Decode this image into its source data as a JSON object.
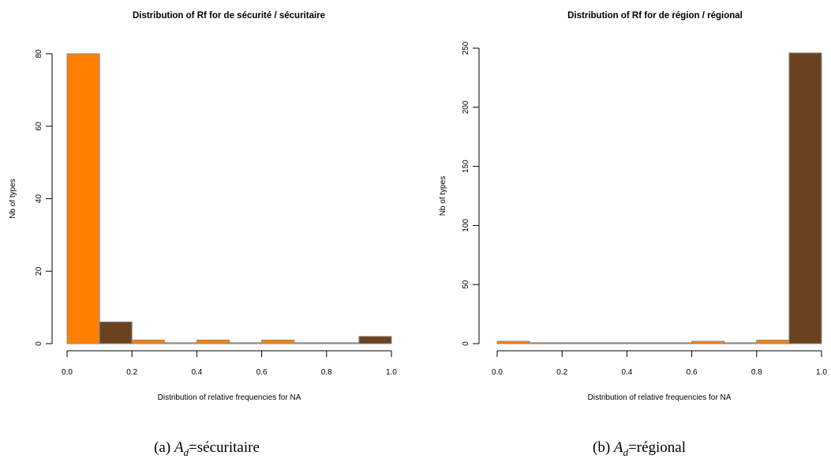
{
  "colors": {
    "orange": "#FF8000",
    "brown": "#6B4220",
    "axis": "#000000",
    "bar_border": "#8a8a8a"
  },
  "chart_data": [
    {
      "type": "bar",
      "title": "Distribution of Rf for de sécurité / sécuritaire",
      "xlabel": "Distribution of relative frequencies for NA",
      "ylabel": "Nb of types",
      "xlim": [
        0,
        1
      ],
      "ylim": [
        0,
        80
      ],
      "xticks": [
        "0.0",
        "0.2",
        "0.4",
        "0.6",
        "0.8",
        "1.0"
      ],
      "yticks": [
        "0",
        "20",
        "40",
        "60",
        "80"
      ],
      "bins": [
        {
          "from": 0.0,
          "to": 0.1,
          "value": 80,
          "color": "orange"
        },
        {
          "from": 0.1,
          "to": 0.2,
          "value": 6,
          "color": "brown"
        },
        {
          "from": 0.2,
          "to": 0.3,
          "value": 1,
          "color": "orange"
        },
        {
          "from": 0.3,
          "to": 0.4,
          "value": 0,
          "color": "orange"
        },
        {
          "from": 0.4,
          "to": 0.5,
          "value": 1,
          "color": "orange"
        },
        {
          "from": 0.5,
          "to": 0.6,
          "value": 0,
          "color": "orange"
        },
        {
          "from": 0.6,
          "to": 0.7,
          "value": 1,
          "color": "orange"
        },
        {
          "from": 0.7,
          "to": 0.8,
          "value": 0,
          "color": "orange"
        },
        {
          "from": 0.8,
          "to": 0.9,
          "value": 0,
          "color": "orange"
        },
        {
          "from": 0.9,
          "to": 1.0,
          "value": 2,
          "color": "brown"
        }
      ],
      "caption": {
        "prefix": "(a)",
        "symbol": "A",
        "subscript": "d",
        "suffix": "=sécuritaire"
      }
    },
    {
      "type": "bar",
      "title": "Distribution of Rf for de région / régional",
      "xlabel": "Distribution of relative frequencies for NA",
      "ylabel": "Nb of types",
      "xlim": [
        0,
        1
      ],
      "ylim": [
        0,
        250
      ],
      "xticks": [
        "0.0",
        "0.2",
        "0.4",
        "0.6",
        "0.8",
        "1.0"
      ],
      "yticks": [
        "0",
        "50",
        "100",
        "150",
        "200",
        "250"
      ],
      "bins": [
        {
          "from": 0.0,
          "to": 0.1,
          "value": 2,
          "color": "orange"
        },
        {
          "from": 0.1,
          "to": 0.2,
          "value": 0,
          "color": "orange"
        },
        {
          "from": 0.2,
          "to": 0.3,
          "value": 0,
          "color": "orange"
        },
        {
          "from": 0.3,
          "to": 0.4,
          "value": 0,
          "color": "orange"
        },
        {
          "from": 0.4,
          "to": 0.5,
          "value": 0,
          "color": "orange"
        },
        {
          "from": 0.5,
          "to": 0.6,
          "value": 0,
          "color": "orange"
        },
        {
          "from": 0.6,
          "to": 0.7,
          "value": 2,
          "color": "orange"
        },
        {
          "from": 0.7,
          "to": 0.8,
          "value": 0,
          "color": "orange"
        },
        {
          "from": 0.8,
          "to": 0.9,
          "value": 3,
          "color": "orange"
        },
        {
          "from": 0.9,
          "to": 1.0,
          "value": 246,
          "color": "brown"
        }
      ],
      "caption": {
        "prefix": "(b)",
        "symbol": "A",
        "subscript": "d",
        "suffix": "=régional"
      }
    }
  ]
}
